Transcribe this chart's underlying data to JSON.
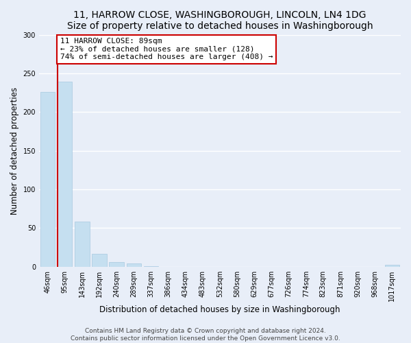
{
  "title": "11, HARROW CLOSE, WASHINGBOROUGH, LINCOLN, LN4 1DG",
  "subtitle": "Size of property relative to detached houses in Washingborough",
  "xlabel": "Distribution of detached houses by size in Washingborough",
  "ylabel": "Number of detached properties",
  "bar_labels": [
    "46sqm",
    "95sqm",
    "143sqm",
    "192sqm",
    "240sqm",
    "289sqm",
    "337sqm",
    "386sqm",
    "434sqm",
    "483sqm",
    "532sqm",
    "580sqm",
    "629sqm",
    "677sqm",
    "726sqm",
    "774sqm",
    "823sqm",
    "871sqm",
    "920sqm",
    "968sqm",
    "1017sqm"
  ],
  "bar_heights": [
    226,
    239,
    58,
    17,
    6,
    4,
    1,
    0,
    0,
    0,
    0,
    0,
    0,
    0,
    0,
    0,
    0,
    0,
    0,
    0,
    2
  ],
  "bar_color": "#c5dff0",
  "bar_edge_color": "#a8c8e0",
  "property_line_bar_index": 1,
  "annotation_title": "11 HARROW CLOSE: 89sqm",
  "annotation_line1": "← 23% of detached houses are smaller (128)",
  "annotation_line2": "74% of semi-detached houses are larger (408) →",
  "annotation_box_color": "white",
  "annotation_box_edge": "#cc0000",
  "marker_line_color": "#cc0000",
  "ylim": [
    0,
    300
  ],
  "yticks": [
    0,
    50,
    100,
    150,
    200,
    250,
    300
  ],
  "footer1": "Contains HM Land Registry data © Crown copyright and database right 2024.",
  "footer2": "Contains public sector information licensed under the Open Government Licence v3.0.",
  "background_color": "#e8eef8",
  "plot_bg_color": "#e8eef8",
  "grid_color": "white",
  "title_fontsize": 10,
  "axis_label_fontsize": 8.5,
  "tick_fontsize": 7,
  "annotation_fontsize": 8,
  "footer_fontsize": 6.5
}
